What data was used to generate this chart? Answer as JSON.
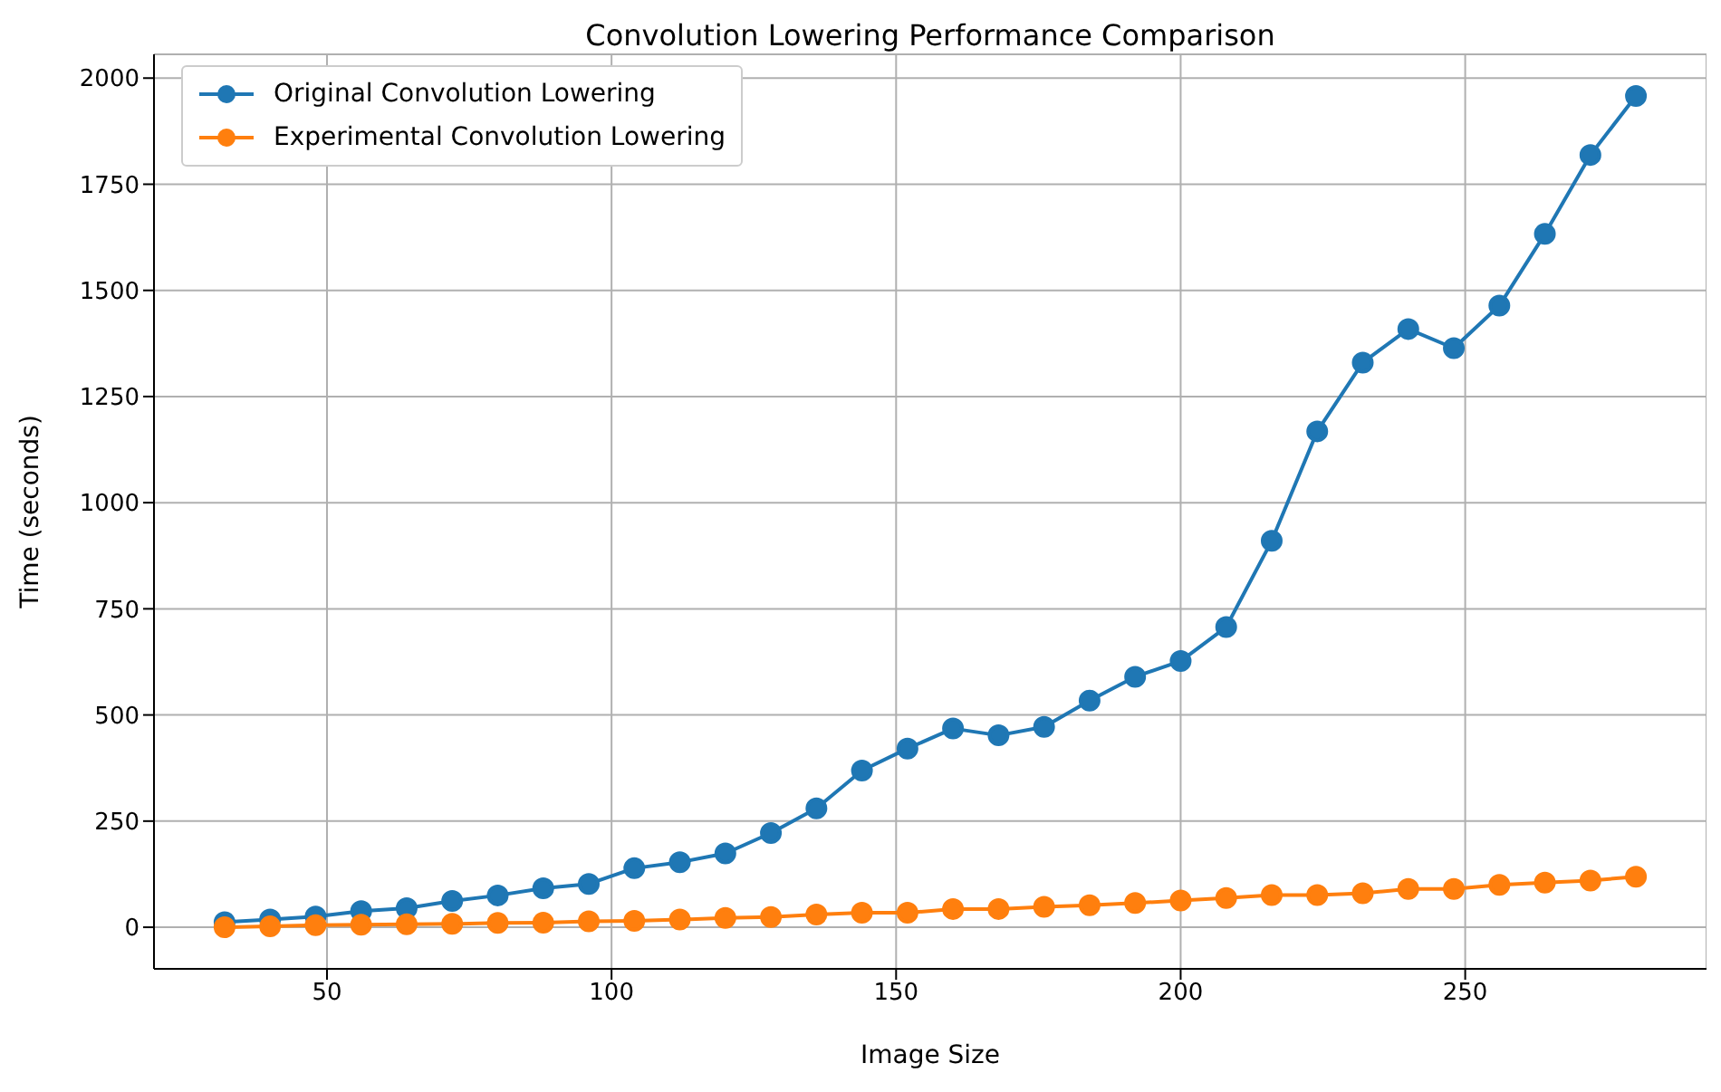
{
  "chart_data": {
    "type": "line",
    "title": "Convolution Lowering Performance Comparison",
    "xlabel": "Image Size",
    "ylabel": "Time (seconds)",
    "x": [
      32,
      40,
      48,
      56,
      64,
      72,
      80,
      88,
      96,
      104,
      112,
      120,
      128,
      136,
      144,
      152,
      160,
      168,
      176,
      184,
      192,
      200,
      208,
      216,
      224,
      232,
      240,
      248,
      256,
      264,
      272,
      280
    ],
    "series": [
      {
        "name": "Original Convolution Lowering",
        "color": "#1f77b4",
        "values": [
          12,
          18,
          25,
          38,
          45,
          62,
          75,
          92,
          102,
          139,
          153,
          174,
          222,
          280,
          369,
          421,
          468,
          452,
          472,
          534,
          590,
          627,
          707,
          910,
          1168,
          1330,
          1409,
          1364,
          1464,
          1633,
          1819,
          1958
        ]
      },
      {
        "name": "Experimental Convolution Lowering",
        "color": "#ff7f0e",
        "values": [
          0,
          2,
          5,
          6,
          7,
          8,
          10,
          11,
          14,
          15,
          18,
          22,
          24,
          30,
          34,
          34,
          43,
          43,
          48,
          52,
          57,
          63,
          69,
          76,
          76,
          80,
          90,
          90,
          100,
          105,
          110,
          119
        ]
      }
    ],
    "xlim": [
      19.6,
      292.4
    ],
    "xticks": [
      50,
      100,
      150,
      200,
      250
    ],
    "ylim": [
      -98,
      2056
    ],
    "yticks": [
      0,
      250,
      500,
      750,
      1000,
      1250,
      1500,
      1750,
      2000
    ],
    "grid": true,
    "legend": "top left",
    "marker": "circle",
    "line_style": "solid"
  }
}
